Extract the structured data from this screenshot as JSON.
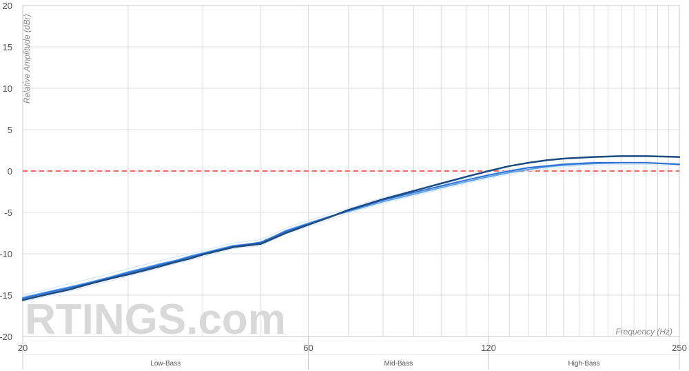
{
  "chart_data": {
    "type": "line",
    "xlabel": "Frequency (Hz)",
    "ylabel": "Relative Amplitude (dBr)",
    "x_scale": "log",
    "xlim": [
      20,
      250
    ],
    "ylim": [
      -20,
      20
    ],
    "x_ticks": [
      20,
      60,
      120,
      250
    ],
    "y_ticks": [
      20,
      15,
      10,
      5,
      0,
      -5,
      -10,
      -15,
      -20
    ],
    "reference_line": {
      "y": 0,
      "color": "#f26b5b",
      "style": "dashed"
    },
    "bands": [
      {
        "label": "Low-Bass",
        "from": 20,
        "to": 60
      },
      {
        "label": "Mid-Bass",
        "from": 60,
        "to": 120
      },
      {
        "label": "High-Bass",
        "from": 120,
        "to": 250
      }
    ],
    "watermark": "RTINGS.com",
    "grid": true,
    "series": [
      {
        "color": "#1b4a80",
        "width": 2.5,
        "x": [
          20,
          22,
          24,
          26,
          28,
          30,
          32,
          34,
          36,
          38,
          40,
          45,
          50,
          55,
          60,
          65,
          70,
          80,
          90,
          100,
          110,
          120,
          130,
          140,
          150,
          160,
          180,
          200,
          220,
          250
        ],
        "y": [
          -15.6,
          -14.9,
          -14.3,
          -13.6,
          -13.0,
          -12.5,
          -12.0,
          -11.5,
          -11.0,
          -10.6,
          -10.1,
          -9.2,
          -8.8,
          -7.5,
          -6.5,
          -5.6,
          -4.7,
          -3.4,
          -2.4,
          -1.5,
          -0.7,
          0.0,
          0.6,
          1.0,
          1.3,
          1.5,
          1.7,
          1.8,
          1.8,
          1.7
        ]
      },
      {
        "color": "#2e6fd0",
        "width": 2,
        "x": [
          20,
          22,
          24,
          26,
          28,
          30,
          32,
          34,
          36,
          38,
          40,
          45,
          50,
          55,
          60,
          65,
          70,
          80,
          90,
          100,
          110,
          120,
          130,
          140,
          150,
          160,
          180,
          200,
          220,
          250
        ],
        "y": [
          -15.4,
          -14.7,
          -14.1,
          -13.5,
          -12.9,
          -12.3,
          -11.8,
          -11.3,
          -10.9,
          -10.4,
          -10.0,
          -9.1,
          -8.6,
          -7.3,
          -6.4,
          -5.6,
          -4.8,
          -3.5,
          -2.6,
          -1.8,
          -1.1,
          -0.5,
          0.0,
          0.4,
          0.6,
          0.8,
          1.0,
          1.0,
          1.0,
          0.8
        ]
      },
      {
        "color": "#5ea4ec",
        "width": 2,
        "x": [
          20,
          22,
          24,
          26,
          28,
          30,
          32,
          34,
          36,
          38,
          40,
          45,
          50,
          55,
          60,
          65,
          70,
          80,
          90,
          100,
          110,
          120,
          130,
          140,
          150,
          160,
          180,
          200,
          220,
          250
        ],
        "y": [
          -15.3,
          -14.6,
          -14.0,
          -13.4,
          -12.8,
          -12.2,
          -11.7,
          -11.2,
          -10.8,
          -10.3,
          -9.9,
          -9.0,
          -8.7,
          -7.2,
          -6.3,
          -5.5,
          -4.9,
          -3.7,
          -2.8,
          -2.0,
          -1.3,
          -0.7,
          -0.2,
          0.2,
          0.5,
          0.7,
          0.9,
          1.0,
          1.0,
          0.8
        ]
      },
      {
        "color": "#cfe4fb",
        "width": 1,
        "x": [
          20,
          22,
          24,
          26,
          28,
          30,
          32,
          34,
          36,
          38,
          40,
          45,
          50,
          55,
          60,
          65,
          70,
          80,
          90,
          100,
          110,
          120,
          130,
          140,
          150,
          160,
          180,
          200,
          220,
          250
        ],
        "y": [
          -15.0,
          -14.3,
          -13.6,
          -13.0,
          -12.4,
          -11.8,
          -11.3,
          -10.8,
          -10.4,
          -10.0,
          -9.6,
          -8.7,
          -8.3,
          -6.9,
          -6.0,
          -5.2,
          -4.5,
          -3.2,
          -2.3,
          -1.6,
          -0.9,
          -0.4,
          0.1,
          0.5,
          0.7,
          0.9,
          1.1,
          1.1,
          1.1,
          0.9
        ]
      },
      {
        "color": "#cfe4fb",
        "width": 1,
        "x": [
          20,
          22,
          24,
          26,
          28,
          30,
          32,
          34,
          36,
          38,
          40,
          45,
          50,
          55,
          60,
          65,
          70,
          80,
          90,
          100,
          110,
          120,
          130,
          140,
          150,
          160,
          180,
          200,
          220,
          250
        ],
        "y": [
          -15.8,
          -15.1,
          -14.5,
          -13.9,
          -13.3,
          -12.7,
          -12.2,
          -11.7,
          -11.2,
          -10.8,
          -10.3,
          -9.4,
          -9.0,
          -7.6,
          -6.7,
          -5.9,
          -5.1,
          -3.9,
          -3.0,
          -2.2,
          -1.5,
          -0.9,
          -0.4,
          0.0,
          0.3,
          0.5,
          0.7,
          0.8,
          0.8,
          0.6
        ]
      }
    ]
  }
}
